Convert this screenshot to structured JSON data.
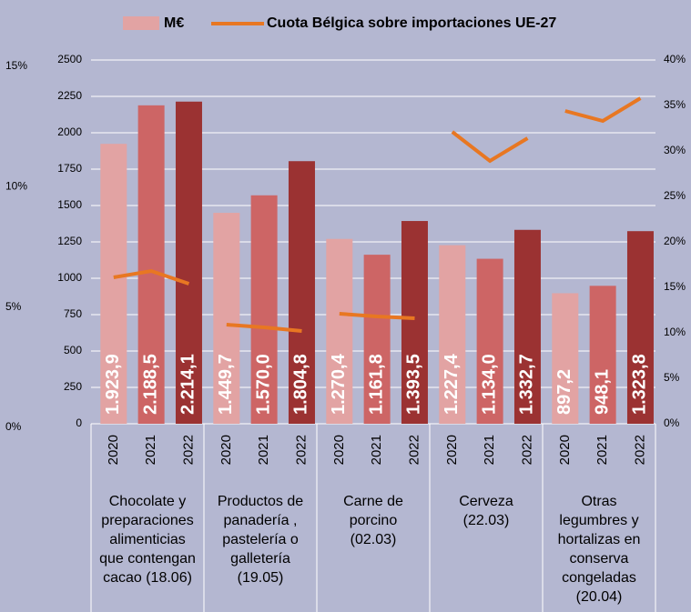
{
  "chart_data": {
    "type": "bar",
    "series": [
      {
        "name": "M€",
        "color": "#e2a3a3",
        "year_colors": [
          "#e2a3a3",
          "#cd6565",
          "#9b3232"
        ]
      },
      {
        "name": "Cuota Bélgica sobre importaciones UE-27",
        "color": "#e87722",
        "axis": "y2"
      }
    ],
    "groups": [
      {
        "label": [
          "Chocolate y",
          "preparaciones",
          "alimenticias",
          "que contengan",
          "cacao  (18.06)"
        ],
        "categories": [
          "2020",
          "2021",
          "2022"
        ],
        "values": [
          1923.9,
          2188.5,
          2214.1
        ],
        "value_labels": [
          "1.923,9",
          "2.188,5",
          "2.214,1"
        ],
        "share": [
          16.1,
          16.8,
          15.4
        ]
      },
      {
        "label": [
          "Productos de",
          "panadería ,",
          "pastelería o",
          "galletería",
          "(19.05)"
        ],
        "categories": [
          "2020",
          "2021",
          "2022"
        ],
        "values": [
          1449.7,
          1570.0,
          1804.8
        ],
        "value_labels": [
          "1.449,7",
          "1.570,0",
          "1.804,8"
        ],
        "share": [
          10.9,
          10.6,
          10.2
        ]
      },
      {
        "label": [
          "Carne de",
          "porcino",
          "(02.03)"
        ],
        "categories": [
          "2020",
          "2021",
          "2022"
        ],
        "values": [
          1270.4,
          1161.8,
          1393.5
        ],
        "value_labels": [
          "1.270,4",
          "1.161,8",
          "1.393,5"
        ],
        "share": [
          12.1,
          11.8,
          11.6
        ]
      },
      {
        "label": [
          "Cerveza",
          "(22.03)"
        ],
        "categories": [
          "2020",
          "2021",
          "2022"
        ],
        "values": [
          1227.4,
          1134.0,
          1332.7
        ],
        "value_labels": [
          "1.227,4",
          "1.134,0",
          "1.332,7"
        ],
        "share": [
          32.1,
          28.9,
          31.4
        ]
      },
      {
        "label": [
          "Otras",
          "legumbres y",
          "hortalizas en",
          "conserva",
          "congeladas",
          "(20.04)"
        ],
        "categories": [
          "2020",
          "2021",
          "2022"
        ],
        "values": [
          897.2,
          948.1,
          1323.8
        ],
        "value_labels": [
          "897,2",
          "948,1",
          "1.323,8"
        ],
        "share": [
          34.4,
          33.3,
          35.8
        ]
      }
    ],
    "ylim": [
      0,
      2500
    ],
    "yticks": [
      0,
      250,
      500,
      750,
      1000,
      1250,
      1500,
      1750,
      2000,
      2250,
      2500
    ],
    "y2lim": [
      0,
      40
    ],
    "y2ticks": [
      {
        "value": 0,
        "label": "0%"
      },
      {
        "value": 5,
        "label": "5%"
      },
      {
        "value": 10,
        "label": "10%"
      },
      {
        "value": 15,
        "label": "15%"
      },
      {
        "value": 20,
        "label": "20%"
      },
      {
        "value": 25,
        "label": "25%"
      },
      {
        "value": 30,
        "label": "30%"
      },
      {
        "value": 35,
        "label": "35%"
      },
      {
        "value": 40,
        "label": "40%"
      }
    ],
    "y3lim": [
      0,
      15
    ],
    "y3ticks": [
      {
        "value": 0,
        "label": "0%"
      },
      {
        "value": 5,
        "label": "5%"
      },
      {
        "value": 10,
        "label": "10%"
      },
      {
        "value": 15,
        "label": "15%"
      }
    ],
    "grid": true
  }
}
